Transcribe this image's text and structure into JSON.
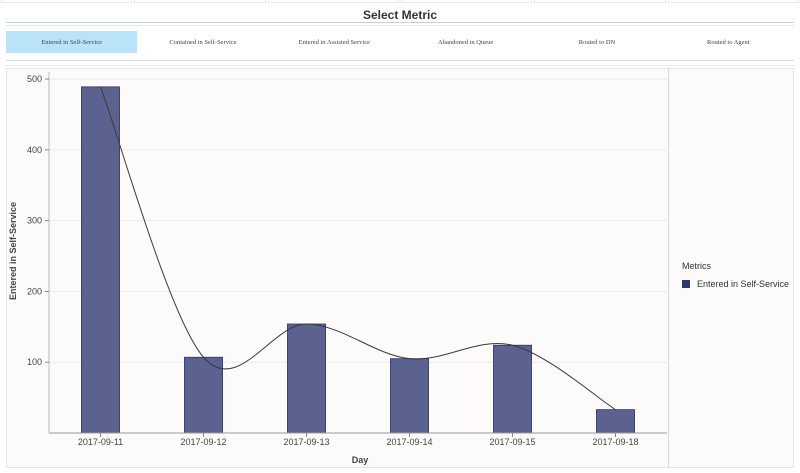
{
  "header": {
    "title": "Select Metric"
  },
  "metrics": [
    {
      "label": "Entered in Self-Service",
      "active": true
    },
    {
      "label": "Contained in Self-Service",
      "active": false
    },
    {
      "label": "Entered in Assisted Service",
      "active": false
    },
    {
      "label": "Abandoned in Queue",
      "active": false
    },
    {
      "label": "Routed to DN",
      "active": false
    },
    {
      "label": "Routed to Agent",
      "active": false
    }
  ],
  "legend": {
    "title": "Metrics",
    "items": [
      {
        "label": "Entered in Self-Service",
        "color": "#2b3a6b"
      }
    ]
  },
  "chart_data": {
    "type": "bar",
    "categories": [
      "2017-09-11",
      "2017-09-12",
      "2017-09-13",
      "2017-09-14",
      "2017-09-15",
      "2017-09-18"
    ],
    "series": [
      {
        "name": "Entered in Self-Service",
        "values": [
          489,
          107,
          154,
          105,
          124,
          33
        ]
      }
    ],
    "trend_line": true,
    "xlabel": "Day",
    "ylabel": "Entered in Self-Service",
    "ylim": [
      0,
      510
    ],
    "yticks": [
      100,
      200,
      300,
      400,
      500
    ],
    "bar_color": "#5b6290",
    "grid": true,
    "legend_position": "right"
  }
}
